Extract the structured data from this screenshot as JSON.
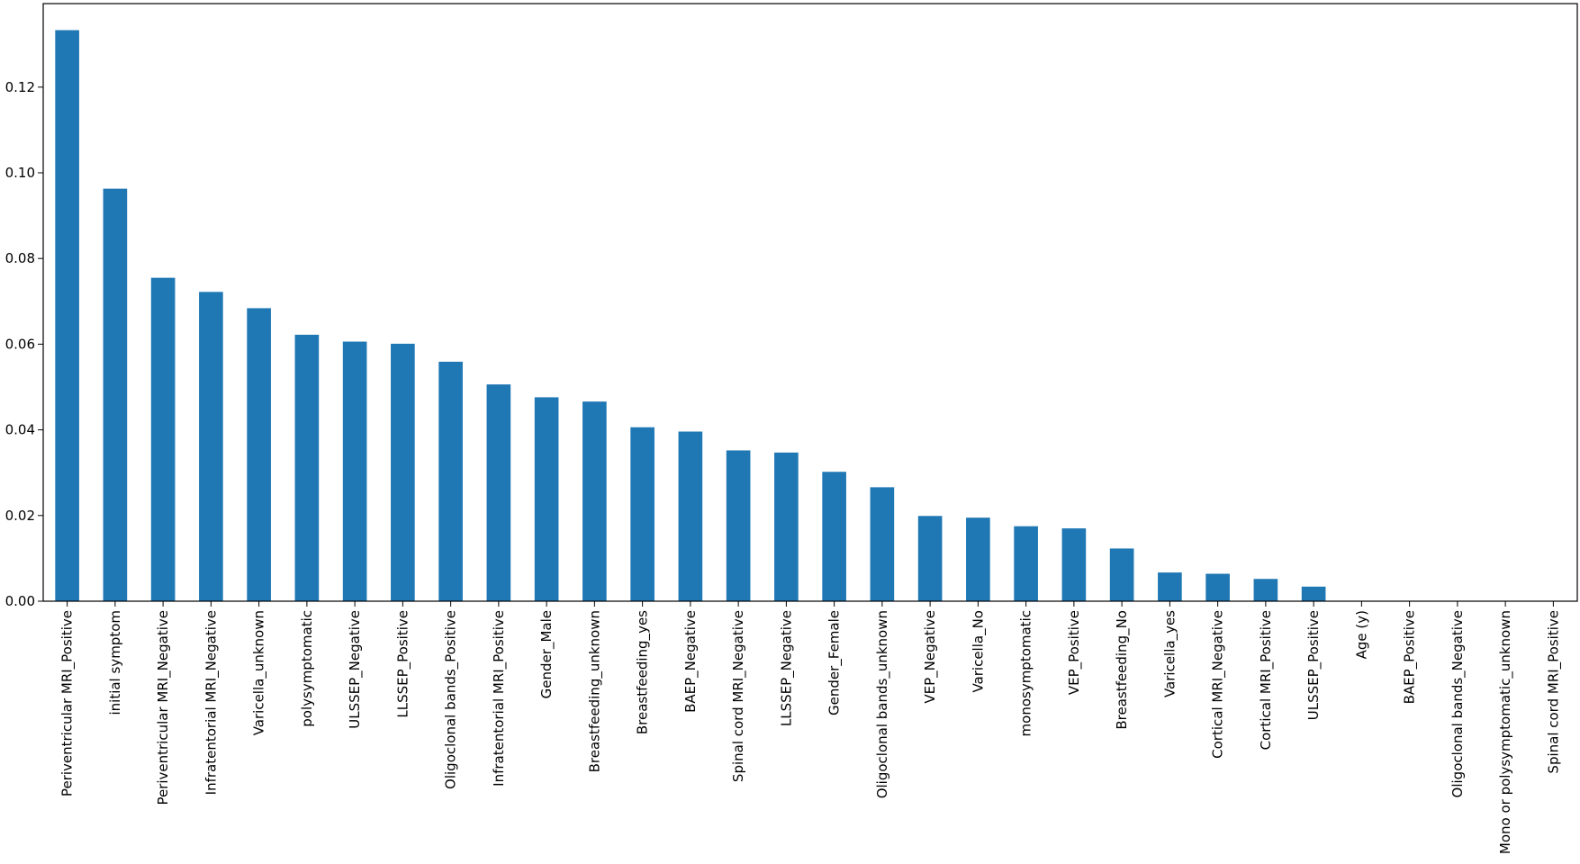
{
  "chart_data": {
    "type": "bar",
    "title": "",
    "xlabel": "",
    "ylabel": "",
    "ylim": [
      0,
      0.1395
    ],
    "yticks": [
      0.0,
      0.02,
      0.04,
      0.06,
      0.08,
      0.1,
      0.12
    ],
    "ytick_labels": [
      "0.00",
      "0.02",
      "0.04",
      "0.06",
      "0.08",
      "0.10",
      "0.12"
    ],
    "grid": false,
    "legend": "none",
    "bar_color": "#1f77b4",
    "categories": [
      "Periventricular MRI_Positive",
      "initial symptom",
      "Periventricular MRI_Negative",
      "Infratentorial MRI_Negative",
      "Varicella_unknown",
      "polysymptomatic",
      "ULSSEP_Negative",
      "LLSSEP_Positive",
      "Oligoclonal bands_Positive",
      "Infratentorial MRI_Positive",
      "Gender_Male",
      "Breastfeeding_unknown",
      "Breastfeeding_yes",
      "BAEP_Negative",
      "Spinal cord MRI_Negative",
      "LLSSEP_Negative",
      "Gender_Female",
      "Oligoclonal bands_unknown",
      "VEP_Negative",
      "Varicella_No",
      "monosymptomatic",
      "VEP_Positive",
      "Breastfeeding_No",
      "Varicella_yes",
      "Cortical MRI_Negative",
      "Cortical MRI_Positive",
      "ULSSEP_Positive",
      "Age (y)",
      "BAEP_Positive",
      "Oligoclonal bands_Negative",
      "Mono or polysymptomatic_unknown",
      "Spinal cord MRI_Positive"
    ],
    "values": [
      0.1333,
      0.0963,
      0.0755,
      0.0722,
      0.0684,
      0.0622,
      0.0606,
      0.0601,
      0.0559,
      0.0506,
      0.0476,
      0.0466,
      0.0406,
      0.0396,
      0.0352,
      0.0347,
      0.0302,
      0.0266,
      0.0199,
      0.0195,
      0.0175,
      0.017,
      0.0123,
      0.0067,
      0.0064,
      0.0052,
      0.0034,
      0.0,
      0.0,
      0.0,
      0.0,
      0.0
    ]
  }
}
